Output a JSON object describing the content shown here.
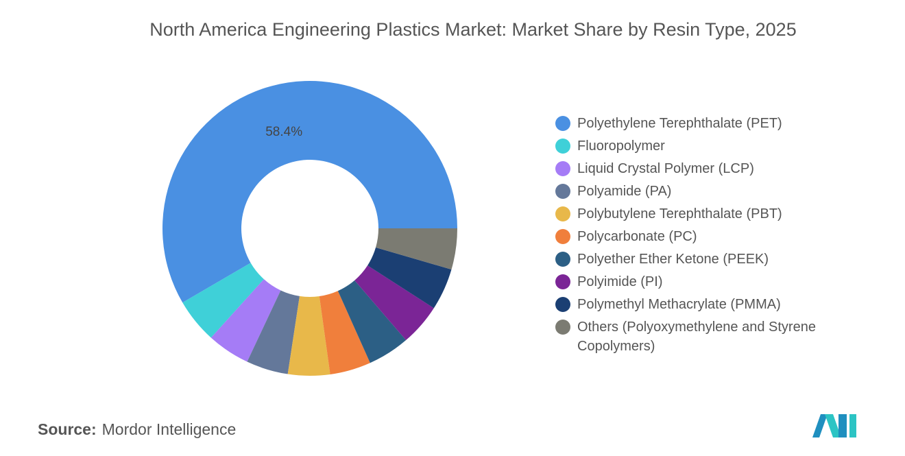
{
  "chart_data": {
    "type": "donut",
    "title": "North America Engineering Plastics Market: Market Share by Resin Type, 2025",
    "categories": [
      "Polyethylene Terephthalate (PET)",
      "Fluoropolymer",
      "Liquid Crystal Polymer (LCP)",
      "Polyamide (PA)",
      "Polybutylene Terephthalate (PBT)",
      "Polycarbonate (PC)",
      "Polyether Ether Ketone (PEEK)",
      "Polyimide (PI)",
      "Polymethyl Methacrylate (PMMA)",
      "Others (Polyoxymethylene and Styrene Copolymers)"
    ],
    "values": [
      58.4,
      4.9,
      4.7,
      4.6,
      4.6,
      4.5,
      4.6,
      4.6,
      4.6,
      4.5
    ],
    "value_labels": [
      "58.4%",
      null,
      null,
      null,
      null,
      null,
      null,
      null,
      null,
      null
    ],
    "colors": [
      "#4a90e2",
      "#3fd0d8",
      "#a57cf6",
      "#64789a",
      "#e8b84a",
      "#f07f3c",
      "#2c5f85",
      "#7b2596",
      "#1b3f73",
      "#7b7b72"
    ],
    "legend": "right"
  },
  "footer": {
    "source_label": "Source:",
    "source": "Mordor Intelligence"
  }
}
